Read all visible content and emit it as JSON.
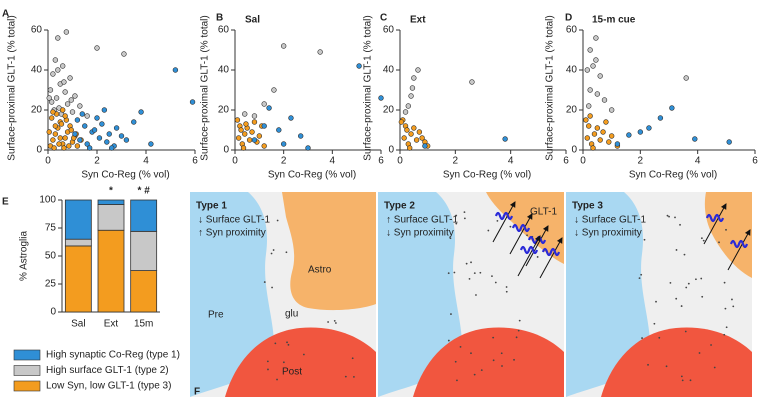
{
  "chart_data": [
    {
      "type": "scatter",
      "label": "A",
      "xlabel": "Syn Co-Reg (% vol)",
      "ylabel": "Surface-proximal GLT-1 (% total)",
      "xlim": [
        0,
        6
      ],
      "ylim": [
        0,
        60
      ],
      "xticks": [
        0,
        2,
        4,
        6
      ],
      "yticks": [
        0,
        20,
        40,
        60
      ],
      "series": [
        {
          "color": "#c8c8c8",
          "x": [
            0.75,
            0.4,
            2.0,
            3.1,
            0.3,
            0.6,
            0.2,
            0.9,
            0.5,
            0.1,
            0.7,
            1.1,
            0.35,
            0.15,
            0.8,
            1.3,
            0.45,
            0.25,
            1.0,
            0.55,
            1.6,
            0.05,
            0.65,
            0.95,
            0.4
          ],
          "values": [
            59,
            56,
            51,
            48,
            45,
            42,
            38,
            36,
            33,
            30,
            29,
            27,
            26,
            24,
            23,
            22,
            21,
            20,
            19,
            18,
            17,
            26,
            34,
            25,
            40
          ]
        },
        {
          "color": "#f39c1f",
          "x": [
            0.1,
            0.2,
            0.3,
            0.4,
            0.5,
            0.6,
            0.7,
            0.8,
            0.9,
            1.0,
            1.1,
            1.2,
            0.15,
            0.35,
            0.55,
            0.75,
            0.95,
            1.15,
            1.35,
            0.25,
            0.45,
            0.65,
            0.85,
            1.05,
            0.05,
            0.3,
            0.5,
            0.7,
            0.2,
            0.6
          ],
          "values": [
            2,
            5,
            8,
            11,
            14,
            3,
            6,
            9,
            12,
            4,
            7,
            2,
            16,
            18,
            13,
            15,
            10,
            8,
            5,
            1,
            3,
            1,
            2,
            6,
            9,
            12,
            6,
            17,
            19,
            20
          ]
        },
        {
          "color": "#2f8fd6",
          "x": [
            5.2,
            5.9,
            3.8,
            1.2,
            1.5,
            1.8,
            2.1,
            2.4,
            2.7,
            3.0,
            1.3,
            1.6,
            1.9,
            2.2,
            2.5,
            2.8,
            3.2,
            1.4,
            1.7,
            2.0,
            2.3,
            3.5,
            4.2,
            1.1,
            2.6
          ],
          "values": [
            40,
            24,
            19,
            15,
            12,
            9,
            6,
            4,
            2,
            7,
            5,
            3,
            10,
            13,
            8,
            11,
            5,
            18,
            1,
            16,
            20,
            14,
            3,
            8,
            1
          ]
        }
      ]
    },
    {
      "type": "scatter",
      "label": "B",
      "title": "Sal",
      "xlabel": "Syn Co-Reg (% vol)",
      "ylabel": "Surface-proximal GLT-1 (% total)",
      "xlim": [
        0,
        6
      ],
      "ylim": [
        0,
        60
      ],
      "xticks": [
        0,
        2,
        4,
        6
      ],
      "yticks": [
        0,
        20,
        40,
        60
      ],
      "series": [
        {
          "color": "#c8c8c8",
          "x": [
            2.0,
            3.5,
            1.2,
            0.4,
            1.6,
            0.8
          ],
          "values": [
            52,
            49,
            23,
            18,
            30,
            17
          ]
        },
        {
          "color": "#f39c1f",
          "x": [
            0.1,
            0.2,
            0.3,
            0.4,
            0.5,
            0.6,
            0.8,
            1.0,
            1.2,
            0.15,
            0.35,
            0.7,
            0.9,
            0.25,
            0.45,
            1.1
          ],
          "values": [
            15,
            12,
            3,
            8,
            11,
            5,
            14,
            7,
            2,
            6,
            1,
            9,
            4,
            10,
            13,
            12
          ]
        },
        {
          "color": "#2f8fd6",
          "x": [
            5.1,
            6.0,
            2.3,
            1.4,
            1.8,
            2.7,
            0.8,
            1.2,
            2.0,
            3.0
          ],
          "values": [
            42,
            26,
            16,
            21,
            10,
            7,
            5,
            12,
            3,
            1
          ]
        }
      ]
    },
    {
      "type": "scatter",
      "label": "C",
      "title": "Ext",
      "xlabel": "Syn Co-Reg (% vol)",
      "ylabel": "Surface-proximal GLT-1 (% total)",
      "xlim": [
        0,
        6
      ],
      "ylim": [
        0,
        60
      ],
      "xticks": [
        0,
        2,
        4,
        6
      ],
      "yticks": [
        0,
        20,
        40,
        60
      ],
      "series": [
        {
          "color": "#c8c8c8",
          "x": [
            0.65,
            0.5,
            0.4,
            0.2,
            2.6,
            0.45,
            0.3
          ],
          "values": [
            40,
            36,
            27,
            19,
            34,
            31,
            22
          ]
        },
        {
          "color": "#f39c1f",
          "x": [
            0.1,
            0.2,
            0.3,
            0.4,
            0.5,
            0.6,
            0.8,
            1.0,
            0.15,
            0.35,
            0.7,
            0.9,
            0.25,
            0.05
          ],
          "values": [
            15,
            12,
            3,
            8,
            11,
            5,
            6,
            2,
            6,
            1,
            9,
            4,
            10,
            14
          ]
        },
        {
          "color": "#2f8fd6",
          "x": [
            3.8,
            0.9
          ],
          "values": [
            5.5,
            2
          ]
        }
      ]
    },
    {
      "type": "scatter",
      "label": "D",
      "title": "15-m cue",
      "xlabel": "Syn Co-Reg (% vol)",
      "ylabel": "Surface-proximal GLT-1 (% total)",
      "xlim": [
        0,
        6
      ],
      "ylim": [
        0,
        60
      ],
      "xticks": [
        0,
        2,
        4,
        6
      ],
      "yticks": [
        0,
        20,
        40,
        60
      ],
      "series": [
        {
          "color": "#c8c8c8",
          "x": [
            0.45,
            0.25,
            0.45,
            0.6,
            0.25,
            0.75,
            3.6,
            0.15,
            0.35,
            0.5,
            0.2,
            1.0
          ],
          "values": [
            56,
            50,
            45,
            37,
            30,
            25,
            36,
            40,
            42,
            28,
            22,
            20
          ]
        },
        {
          "color": "#f39c1f",
          "x": [
            0.1,
            0.2,
            0.3,
            0.4,
            0.5,
            0.6,
            0.8,
            1.0,
            1.2,
            0.15,
            0.35,
            0.7,
            0.9,
            0.25
          ],
          "values": [
            15,
            12,
            3,
            8,
            11,
            5,
            14,
            7,
            2,
            6,
            1,
            9,
            4,
            17
          ]
        },
        {
          "color": "#2f8fd6",
          "x": [
            3.1,
            2.3,
            1.6,
            3.9,
            5.1,
            2.7,
            1.2,
            2.0
          ],
          "values": [
            21,
            11,
            7.5,
            5.5,
            4,
            16,
            3,
            9
          ]
        }
      ]
    },
    {
      "type": "bar",
      "stacked": true,
      "label": "E",
      "ylabel": "% Astroglia",
      "categories": [
        "Sal",
        "Ext",
        "15m"
      ],
      "annotations": [
        null,
        "*",
        "* #"
      ],
      "ylim": [
        0,
        100
      ],
      "yticks": [
        0,
        25,
        50,
        75,
        100
      ],
      "series": [
        {
          "name": "High synaptic Co-Reg (type 1)",
          "color": "#2f8fd6",
          "values": [
            35,
            4,
            28
          ]
        },
        {
          "name": "High surface GLT-1 (type 2)",
          "color": "#c8c8c8",
          "values": [
            6,
            23,
            35
          ]
        },
        {
          "name": "Low Syn, low GLT-1 (type 3)",
          "color": "#f39c1f",
          "values": [
            59,
            73,
            37
          ]
        }
      ]
    }
  ],
  "diagram": {
    "label": "F",
    "panels": [
      {
        "title": "Type 1",
        "lines": [
          "↓ Surface GLT-1",
          "↑ Syn proximity"
        ],
        "labels": [
          "Astro",
          "Pre",
          "Post",
          "glu"
        ]
      },
      {
        "title": "Type 2",
        "lines": [
          "↑ Surface GLT-1",
          "↓ Syn proximity"
        ],
        "labels": [
          "GLT-1"
        ]
      },
      {
        "title": "Type 3",
        "lines": [
          "↓ Surface GLT-1",
          "↓ Syn proximity"
        ]
      }
    ]
  }
}
